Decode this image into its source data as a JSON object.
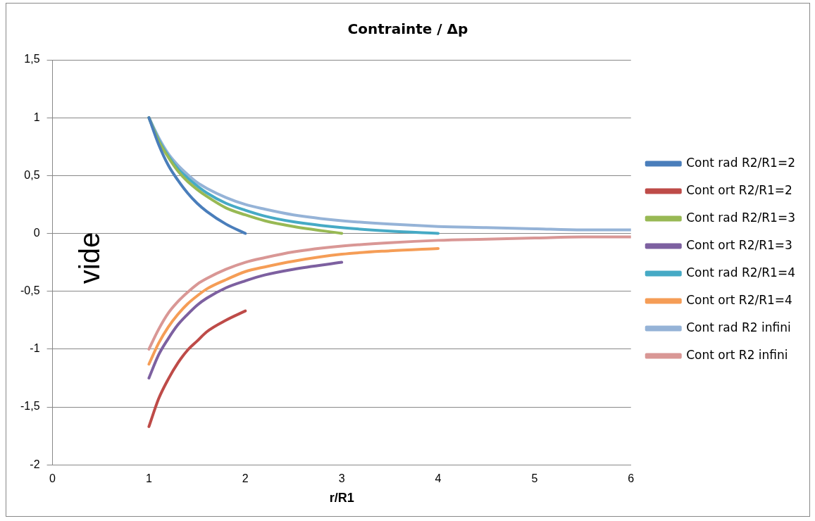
{
  "chart_data": {
    "type": "line",
    "title": "Contrainte / Δp",
    "xlabel": "r/R1",
    "annotations": [
      "vide"
    ],
    "xlim": [
      0,
      6
    ],
    "xticks": [
      0,
      1,
      2,
      3,
      4,
      5,
      6
    ],
    "ylim": [
      -2,
      1.5
    ],
    "yticks": [
      {
        "value": -2,
        "label": "-2"
      },
      {
        "value": -1.5,
        "label": "-1,5"
      },
      {
        "value": -1,
        "label": "-1"
      },
      {
        "value": -0.5,
        "label": "-0,5"
      },
      {
        "value": 0,
        "label": "0"
      },
      {
        "value": 0.5,
        "label": "0,5"
      },
      {
        "value": 1,
        "label": "1"
      },
      {
        "value": 1.5,
        "label": "1,5"
      }
    ],
    "grid": "y",
    "legend": "right",
    "marker": "none",
    "line_style": "solid",
    "series": [
      {
        "name": "Cont rad R2/R1=2",
        "color": "#4a7ebb",
        "x": [
          1,
          1.1,
          1.2,
          1.3,
          1.4,
          1.5,
          1.6,
          1.8,
          2
        ],
        "values": [
          1,
          0.77,
          0.59,
          0.46,
          0.35,
          0.26,
          0.19,
          0.08,
          0
        ]
      },
      {
        "name": "Cont ort R2/R1=2",
        "color": "#be4b48",
        "x": [
          1,
          1.1,
          1.2,
          1.3,
          1.4,
          1.5,
          1.6,
          1.8,
          2
        ],
        "values": [
          -1.67,
          -1.43,
          -1.26,
          -1.12,
          -1.01,
          -0.93,
          -0.85,
          -0.75,
          -0.67
        ]
      },
      {
        "name": "Cont rad R2/R1=3",
        "color": "#98b954",
        "x": [
          1,
          1.1,
          1.2,
          1.3,
          1.4,
          1.5,
          1.6,
          1.8,
          2,
          2.2,
          2.5,
          3
        ],
        "values": [
          1,
          0.8,
          0.66,
          0.54,
          0.45,
          0.38,
          0.32,
          0.22,
          0.16,
          0.11,
          0.06,
          0
        ]
      },
      {
        "name": "Cont ort R2/R1=3",
        "color": "#7d60a0",
        "x": [
          1,
          1.1,
          1.2,
          1.3,
          1.4,
          1.5,
          1.6,
          1.8,
          2,
          2.2,
          2.5,
          3
        ],
        "values": [
          -1.25,
          -1.05,
          -0.91,
          -0.79,
          -0.7,
          -0.62,
          -0.56,
          -0.47,
          -0.41,
          -0.36,
          -0.31,
          -0.25
        ]
      },
      {
        "name": "Cont rad R2/R1=4",
        "color": "#46aac5",
        "x": [
          1,
          1.1,
          1.2,
          1.3,
          1.4,
          1.5,
          1.6,
          1.8,
          2,
          2.2,
          2.5,
          3,
          3.5,
          4
        ],
        "values": [
          1,
          0.81,
          0.67,
          0.56,
          0.48,
          0.41,
          0.35,
          0.26,
          0.2,
          0.15,
          0.1,
          0.05,
          0.02,
          0
        ]
      },
      {
        "name": "Cont ort R2/R1=4",
        "color": "#f59d56",
        "x": [
          1,
          1.1,
          1.2,
          1.3,
          1.4,
          1.5,
          1.6,
          1.8,
          2,
          2.2,
          2.5,
          3,
          3.5,
          4
        ],
        "values": [
          -1.13,
          -0.95,
          -0.81,
          -0.7,
          -0.61,
          -0.54,
          -0.48,
          -0.4,
          -0.33,
          -0.29,
          -0.24,
          -0.18,
          -0.15,
          -0.13
        ]
      },
      {
        "name": "Cont rad R2 infini",
        "color": "#95b3d7",
        "x": [
          1,
          1.1,
          1.2,
          1.3,
          1.4,
          1.5,
          1.6,
          1.8,
          2,
          2.2,
          2.5,
          3,
          3.5,
          4,
          4.5,
          5,
          5.5,
          6
        ],
        "values": [
          1,
          0.83,
          0.69,
          0.59,
          0.51,
          0.44,
          0.39,
          0.31,
          0.25,
          0.21,
          0.16,
          0.11,
          0.08,
          0.06,
          0.05,
          0.04,
          0.03,
          0.03
        ]
      },
      {
        "name": "Cont ort R2 infini",
        "color": "#d99795",
        "x": [
          1,
          1.1,
          1.2,
          1.3,
          1.4,
          1.5,
          1.6,
          1.8,
          2,
          2.2,
          2.5,
          3,
          3.5,
          4,
          4.5,
          5,
          5.5,
          6
        ],
        "values": [
          -1,
          -0.83,
          -0.69,
          -0.59,
          -0.51,
          -0.44,
          -0.39,
          -0.31,
          -0.25,
          -0.21,
          -0.16,
          -0.11,
          -0.08,
          -0.06,
          -0.05,
          -0.04,
          -0.03,
          -0.03
        ]
      }
    ]
  }
}
